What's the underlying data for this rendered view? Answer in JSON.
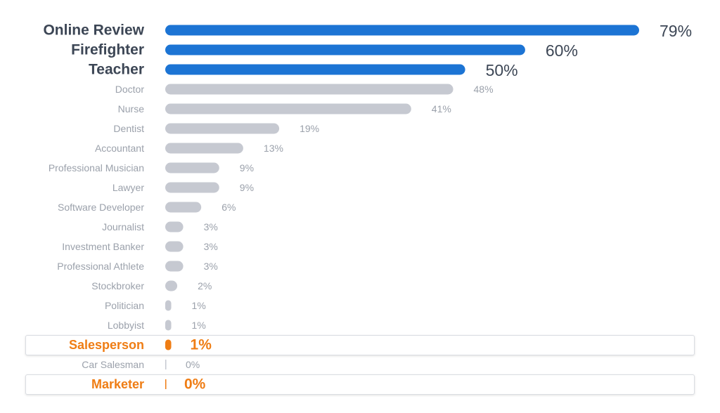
{
  "colors": {
    "top": "#1c74d4",
    "top_label": "#3c4655",
    "normal_bar": "#c6c9d1",
    "normal_label": "#9ba1ab",
    "highlight": "#ef7d14"
  },
  "chart_data": {
    "type": "bar",
    "orientation": "horizontal",
    "title": "",
    "xlabel": "",
    "ylabel": "",
    "xlim": [
      0,
      79
    ],
    "grid": false,
    "legend": "none",
    "value_format": "percent",
    "categories": [
      "Online Review",
      "Firefighter",
      "Teacher",
      "Doctor",
      "Nurse",
      "Dentist",
      "Accountant",
      "Professional Musician",
      "Lawyer",
      "Software Developer",
      "Journalist",
      "Investment Banker",
      "Professional Athlete",
      "Stockbroker",
      "Politician",
      "Lobbyist",
      "Salesperson",
      "Car Salesman",
      "Marketer"
    ],
    "values": [
      79,
      60,
      50,
      48,
      41,
      19,
      13,
      9,
      9,
      6,
      3,
      3,
      3,
      2,
      1,
      1,
      1,
      0,
      0
    ],
    "value_labels": [
      "79%",
      "60%",
      "50%",
      "48%",
      "41%",
      "19%",
      "13%",
      "9%",
      "9%",
      "6%",
      "3%",
      "3%",
      "3%",
      "2%",
      "1%",
      "1%",
      "1%",
      "0%",
      "0%"
    ],
    "styles": [
      "top",
      "top",
      "top",
      "normal",
      "normal",
      "normal",
      "normal",
      "normal",
      "normal",
      "normal",
      "normal",
      "normal",
      "normal",
      "normal",
      "normal",
      "normal",
      "highlight",
      "normal",
      "highlight"
    ]
  }
}
